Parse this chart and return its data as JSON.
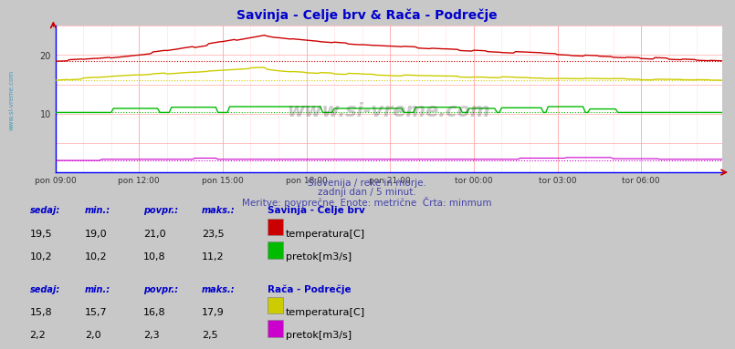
{
  "title": "Savinja - Celje brv & Rača - Podrečje",
  "title_color": "#0000cc",
  "bg_color": "#c8c8c8",
  "plot_bg_color": "#ffffff",
  "subtitle1": "Slovenija / reke in morje.",
  "subtitle2": "zadnji dan / 5 minut.",
  "subtitle3": "Meritve: povprečne  Enote: metrične  Črta: minmum",
  "subtitle_color": "#4444aa",
  "x_labels": [
    "pon 09:00",
    "pon 12:00",
    "pon 15:00",
    "pon 18:00",
    "pon 21:00",
    "tor 00:00",
    "tor 03:00",
    "tor 06:00"
  ],
  "x_ticks": [
    0,
    36,
    72,
    108,
    144,
    180,
    216,
    252
  ],
  "n_points": 288,
  "ylim": [
    0,
    25
  ],
  "yticks": [
    10,
    20
  ],
  "grid_color": "#ffaaaa",
  "grid_minor_color": "#ffdddd",
  "left_label": "www.si-vreme.com",
  "left_label_color": "#4499bb",
  "savinja_temp_color": "#cc0000",
  "savinja_temp_min": 19.0,
  "savinja_temp_max": 23.5,
  "savinja_temp_avg": 21.0,
  "savinja_temp_now": 19.5,
  "savinja_flow_color": "#00bb00",
  "savinja_flow_min": 10.2,
  "savinja_flow_max": 11.2,
  "savinja_flow_avg": 10.8,
  "savinja_flow_now": 10.2,
  "raca_temp_color": "#cccc00",
  "raca_temp_min": 15.7,
  "raca_temp_max": 17.9,
  "raca_temp_avg": 16.8,
  "raca_temp_now": 15.8,
  "raca_flow_color": "#cc00cc",
  "raca_flow_min": 2.0,
  "raca_flow_max": 2.5,
  "raca_flow_avg": 2.3,
  "raca_flow_now": 2.2,
  "legend_station1": "Savinja - Celje brv",
  "legend_station2": "Rača - Podrečje",
  "legend_temp": "temperatura[C]",
  "legend_flow": "pretok[m3/s]",
  "stat_header": [
    "sedaj:",
    "min.:",
    "povpr.:",
    "maks.:"
  ],
  "stat_color": "#0000cc",
  "stat_value_color": "#000000",
  "axis_color": "#0000ff",
  "tick_color": "#333333"
}
